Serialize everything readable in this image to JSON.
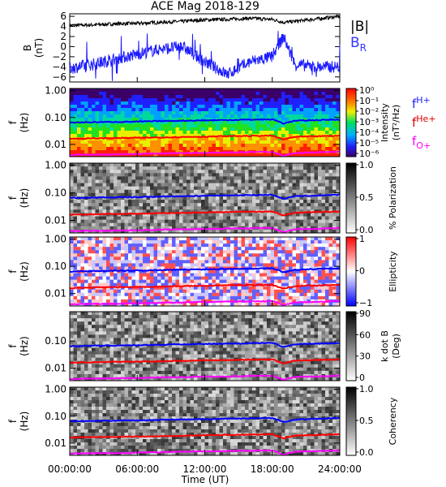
{
  "title": "ACE Mag 2018-129",
  "xlabel": "Time (UT)",
  "x_ticks": [
    "00:00:00",
    "06:00:00",
    "12:00:00",
    "18:00:00",
    "24:00:00"
  ],
  "colors": {
    "B_total": "#000000",
    "B_R": "#1a1aff",
    "f_H": "#0000ff",
    "f_He": "#ff0000",
    "f_O": "#ff00ff"
  },
  "legend": {
    "B_total": "|B|",
    "B_R_main": "B",
    "B_R_sub": "R",
    "f_H_main": "f",
    "f_H_sub": "H+",
    "f_He_main": "f",
    "f_He_sub": "He+",
    "f_O_main": "f",
    "f_O_sub": "O+"
  },
  "chart_data": [
    {
      "type": "line",
      "panel": "B field",
      "ylabel": "B",
      "yunit": "(nT)",
      "ylim": [
        -7,
        6.5
      ],
      "y_ticks": [
        "6",
        "4",
        "2",
        "0",
        "−2",
        "−4",
        "−6"
      ],
      "y_tick_values": [
        6,
        4,
        2,
        0,
        -2,
        -4,
        -6
      ],
      "x_hours": [
        0,
        2,
        4,
        6,
        8,
        10,
        12,
        14,
        16,
        18,
        19,
        20,
        22,
        24
      ],
      "series": [
        {
          "name": "|B|",
          "values": [
            4.2,
            4.3,
            4.5,
            4.6,
            4.8,
            5.0,
            5.3,
            5.4,
            5.6,
            5.4,
            4.8,
            5.0,
            5.5,
            6.0
          ]
        },
        {
          "name": "B_R",
          "values": [
            -4.3,
            -3.5,
            -2.5,
            -1.5,
            -0.5,
            0.0,
            -3.0,
            -5.5,
            -3.0,
            -2.0,
            2.0,
            -3.5,
            -4.0,
            -4.0
          ]
        }
      ]
    },
    {
      "type": "heatmap",
      "panel": "Intensity",
      "ylabel": "f",
      "yunit": "(Hz)",
      "y_ticks": [
        "1.00",
        "0.10",
        "0.01"
      ],
      "colorbar_label": "Intensity",
      "colorbar_unit": "(nT²/Hz)",
      "colorbar_ticks": [
        "10⁰",
        "10⁻¹",
        "10⁻²",
        "10⁻³",
        "10⁻⁴",
        "10⁻⁵",
        "10⁻⁶"
      ],
      "colorbar_range": [
        -6,
        0
      ]
    },
    {
      "type": "heatmap",
      "panel": "Polarization",
      "ylabel": "f",
      "yunit": "(Hz)",
      "y_ticks": [
        "1.00",
        "0.10",
        "0.01"
      ],
      "colorbar_label": "% Polarization",
      "colorbar_ticks": [
        "1.0",
        "0.5",
        "0.0"
      ],
      "colorbar_range": [
        0,
        1
      ]
    },
    {
      "type": "heatmap",
      "panel": "Ellipticity",
      "ylabel": "f",
      "yunit": "(Hz)",
      "y_ticks": [
        "1.00",
        "0.10",
        "0.01"
      ],
      "colorbar_label": "Ellipticity",
      "colorbar_ticks": [
        "1",
        "0",
        "−1"
      ],
      "colorbar_range": [
        -1,
        1
      ]
    },
    {
      "type": "heatmap",
      "panel": "k dot B",
      "ylabel": "f",
      "yunit": "(Hz)",
      "y_ticks": [
        "0.10",
        "0.01"
      ],
      "colorbar_label": "k dot B",
      "colorbar_unit": "(Deg)",
      "colorbar_ticks": [
        "90",
        "60",
        "30",
        "0"
      ],
      "colorbar_range": [
        0,
        90
      ]
    },
    {
      "type": "heatmap",
      "panel": "Coherency",
      "ylabel": "f",
      "yunit": "(Hz)",
      "y_ticks": [
        "1.00",
        "0.10",
        "0.01"
      ],
      "colorbar_label": "Coherency",
      "colorbar_ticks": [
        "1.0",
        "0.5",
        "0.0"
      ],
      "colorbar_range": [
        0,
        1
      ]
    }
  ],
  "gyrofrequency_lines": {
    "x_hours": [
      0,
      3,
      6,
      9,
      12,
      15,
      18,
      19,
      20,
      22,
      24
    ],
    "f_H": [
      0.065,
      0.068,
      0.07,
      0.075,
      0.078,
      0.082,
      0.085,
      0.06,
      0.075,
      0.08,
      0.085
    ],
    "f_He": [
      0.016,
      0.017,
      0.0175,
      0.0185,
      0.0195,
      0.0205,
      0.021,
      0.015,
      0.019,
      0.02,
      0.021
    ],
    "f_O": [
      0.0041,
      0.0042,
      0.0044,
      0.0047,
      0.0049,
      0.0051,
      0.0053,
      0.0037,
      0.0048,
      0.005,
      0.0053
    ]
  }
}
